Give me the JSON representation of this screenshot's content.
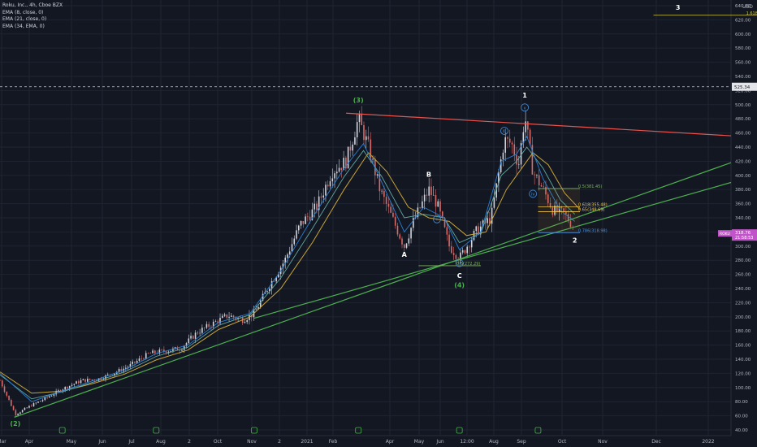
{
  "header": {
    "symbol_line": "Roku, Inc., 4h, Cboe BZX",
    "indicators": [
      "EMA (8, close, 0)",
      "EMA (21, close, 0)",
      "EMA (34, EMA, 0)"
    ]
  },
  "currency": "USD",
  "colors": {
    "background": "#131722",
    "grid": "#1f2433",
    "candle_up": "#d1d4dc",
    "candle_down": "#d86a6a",
    "ema8": "#2a7fd4",
    "ema21": "#5fa8a0",
    "ema34": "#c8a437",
    "resistance": "#e8534d",
    "support": "#4caf50",
    "price_badge": "#c254c9",
    "fib_05": "#7fb25f",
    "fib_0618": "#f5c842",
    "fib_0786": "#4a90d9"
  },
  "chart_data": {
    "type": "candlestick",
    "y_axis": {
      "ticks": [
        40,
        60,
        80,
        100,
        120,
        140,
        160,
        180,
        200,
        220,
        240,
        260,
        280,
        300,
        320,
        340,
        360,
        380,
        400,
        420,
        440,
        460,
        480,
        500,
        520,
        540,
        560,
        580,
        600,
        620,
        640
      ],
      "range": [
        32,
        648
      ]
    },
    "x_axis": {
      "labels": [
        "Mar",
        "Apr",
        "May",
        "Jun",
        "Jul",
        "Aug",
        "2",
        "Oct",
        "Nov",
        "2",
        "2021",
        "Feb",
        "Apr",
        "May",
        "Jun",
        "12:00",
        "Aug",
        "Sep",
        "Oct",
        "Nov",
        "Dec",
        "2022"
      ],
      "range": [
        "2020-03-01",
        "2022-02-15"
      ]
    },
    "price_path": [
      [
        "2020-03-01",
        110
      ],
      [
        "2020-03-16",
        62
      ],
      [
        "2020-04-01",
        75
      ],
      [
        "2020-04-15",
        85
      ],
      [
        "2020-05-01",
        98
      ],
      [
        "2020-05-20",
        110
      ],
      [
        "2020-06-05",
        112
      ],
      [
        "2020-06-20",
        120
      ],
      [
        "2020-07-05",
        130
      ],
      [
        "2020-07-25",
        148
      ],
      [
        "2020-08-10",
        152
      ],
      [
        "2020-08-25",
        155
      ],
      [
        "2020-09-10",
        178
      ],
      [
        "2020-09-25",
        190
      ],
      [
        "2020-10-10",
        202
      ],
      [
        "2020-10-25",
        196
      ],
      [
        "2020-11-05",
        205
      ],
      [
        "2020-11-20",
        245
      ],
      [
        "2020-12-05",
        280
      ],
      [
        "2020-12-20",
        330
      ],
      [
        "2021-01-05",
        355
      ],
      [
        "2021-01-20",
        405
      ],
      [
        "2021-02-03",
        420
      ],
      [
        "2021-02-15",
        480
      ],
      [
        "2021-02-25",
        440
      ],
      [
        "2021-03-08",
        380
      ],
      [
        "2021-03-20",
        340
      ],
      [
        "2021-04-01",
        300
      ],
      [
        "2021-04-10",
        335
      ],
      [
        "2021-04-25",
        380
      ],
      [
        "2021-05-03",
        360
      ],
      [
        "2021-05-15",
        300
      ],
      [
        "2021-05-25",
        283
      ],
      [
        "2021-06-10",
        320
      ],
      [
        "2021-06-25",
        340
      ],
      [
        "2021-07-08",
        450
      ],
      [
        "2021-07-15",
        445
      ],
      [
        "2021-07-22",
        415
      ],
      [
        "2021-07-28",
        485
      ],
      [
        "2021-08-05",
        405
      ],
      [
        "2021-08-15",
        380
      ],
      [
        "2021-08-25",
        350
      ],
      [
        "2021-09-05",
        345
      ],
      [
        "2021-09-15",
        325
      ]
    ],
    "ema_fast_path": [
      [
        "2020-03-01",
        120
      ],
      [
        "2020-04-01",
        80
      ],
      [
        "2020-05-01",
        95
      ],
      [
        "2020-06-01",
        110
      ],
      [
        "2020-07-01",
        125
      ],
      [
        "2020-08-01",
        148
      ],
      [
        "2020-09-01",
        160
      ],
      [
        "2020-10-01",
        192
      ],
      [
        "2020-11-01",
        205
      ],
      [
        "2020-12-01",
        265
      ],
      [
        "2021-01-01",
        340
      ],
      [
        "2021-02-01",
        410
      ],
      [
        "2021-02-20",
        445
      ],
      [
        "2021-03-10",
        390
      ],
      [
        "2021-04-01",
        320
      ],
      [
        "2021-04-20",
        355
      ],
      [
        "2021-05-10",
        340
      ],
      [
        "2021-05-25",
        295
      ],
      [
        "2021-06-15",
        320
      ],
      [
        "2021-07-05",
        420
      ],
      [
        "2021-07-20",
        430
      ],
      [
        "2021-07-30",
        455
      ],
      [
        "2021-08-15",
        395
      ],
      [
        "2021-09-01",
        350
      ],
      [
        "2021-09-15",
        335
      ]
    ],
    "ema_mid_path": [
      [
        "2020-03-01",
        118
      ],
      [
        "2020-04-01",
        84
      ],
      [
        "2020-05-01",
        94
      ],
      [
        "2020-06-01",
        108
      ],
      [
        "2020-07-01",
        122
      ],
      [
        "2020-08-01",
        144
      ],
      [
        "2020-09-01",
        157
      ],
      [
        "2020-10-01",
        188
      ],
      [
        "2020-11-01",
        203
      ],
      [
        "2020-12-01",
        255
      ],
      [
        "2021-01-01",
        325
      ],
      [
        "2021-02-01",
        398
      ],
      [
        "2021-02-20",
        435
      ],
      [
        "2021-03-10",
        398
      ],
      [
        "2021-04-01",
        340
      ],
      [
        "2021-04-20",
        345
      ],
      [
        "2021-05-10",
        340
      ],
      [
        "2021-05-25",
        305
      ],
      [
        "2021-06-15",
        318
      ],
      [
        "2021-07-05",
        400
      ],
      [
        "2021-07-20",
        420
      ],
      [
        "2021-07-30",
        440
      ],
      [
        "2021-08-15",
        410
      ],
      [
        "2021-09-01",
        365
      ],
      [
        "2021-09-15",
        345
      ]
    ],
    "ema_slow_path": [
      [
        "2020-03-01",
        122
      ],
      [
        "2020-04-01",
        92
      ],
      [
        "2020-05-01",
        95
      ],
      [
        "2020-06-01",
        106
      ],
      [
        "2020-07-01",
        119
      ],
      [
        "2020-08-01",
        139
      ],
      [
        "2020-09-01",
        153
      ],
      [
        "2020-10-01",
        182
      ],
      [
        "2020-11-01",
        200
      ],
      [
        "2020-12-01",
        240
      ],
      [
        "2021-01-01",
        305
      ],
      [
        "2021-02-01",
        380
      ],
      [
        "2021-02-25",
        432
      ],
      [
        "2021-03-15",
        405
      ],
      [
        "2021-04-05",
        355
      ],
      [
        "2021-04-25",
        340
      ],
      [
        "2021-05-15",
        335
      ],
      [
        "2021-06-01",
        315
      ],
      [
        "2021-06-20",
        320
      ],
      [
        "2021-07-10",
        380
      ],
      [
        "2021-07-25",
        410
      ],
      [
        "2021-08-05",
        432
      ],
      [
        "2021-08-20",
        415
      ],
      [
        "2021-09-05",
        375
      ],
      [
        "2021-09-20",
        352
      ]
    ],
    "trendlines": [
      {
        "name": "resistance",
        "from": [
          "2021-02-03",
          488
        ],
        "to": [
          "2022-02-15",
          456
        ]
      },
      {
        "name": "support-upper",
        "from": [
          "2020-03-15",
          58
        ],
        "to": [
          "2022-02-15",
          418
        ]
      },
      {
        "name": "support-lower",
        "from": [
          "2020-11-05",
          198
        ],
        "to": [
          "2022-02-15",
          390
        ]
      }
    ],
    "fib_levels": [
      {
        "label": "0.5(381.45)",
        "price": 381.45,
        "from": "2021-08-10",
        "to": "2021-09-20",
        "color": "#7fb25f"
      },
      {
        "label": "0.618(355.48)",
        "price": 355.48,
        "from": "2021-08-10",
        "to": "2021-09-20",
        "color": "#f5c842"
      },
      {
        "label": "0.65(348.69)",
        "price": 348.69,
        "from": "2021-08-10",
        "to": "2021-09-20",
        "color": "#f5c842"
      },
      {
        "label": "0.786(318.98)",
        "price": 318.98,
        "from": "2021-08-10",
        "to": "2021-09-20",
        "color": "#4a90d9"
      },
      {
        "label": "0.5(272.29)",
        "price": 272.29,
        "from": "2021-04-15",
        "to": "2021-06-15",
        "color": "#7fb25f"
      },
      {
        "label": "1.618(626.45)",
        "price": 626.45,
        "from": "2021-12-01",
        "to": "2022-04-01",
        "color": "#d4c94a"
      }
    ],
    "wave_labels": [
      {
        "text": "(2)",
        "date": "2020-03-16",
        "price": 46,
        "color": "#4caf50"
      },
      {
        "text": "(3)",
        "date": "2021-02-15",
        "price": 503,
        "color": "#4caf50"
      },
      {
        "text": "A",
        "date": "2021-04-01",
        "price": 285,
        "color": "#ffffff"
      },
      {
        "text": "B",
        "date": "2021-04-25",
        "price": 398,
        "color": "#ffffff"
      },
      {
        "text": "C",
        "date": "2021-05-25",
        "price": 255,
        "color": "#ffffff"
      },
      {
        "text": "(4)",
        "date": "2021-05-25",
        "price": 242,
        "color": "#4caf50"
      },
      {
        "text": "1",
        "date": "2021-07-28",
        "price": 510,
        "color": "#ffffff"
      },
      {
        "text": "2",
        "date": "2021-09-15",
        "price": 305,
        "color": "#ffffff"
      },
      {
        "text": "3",
        "date": "2021-12-25",
        "price": 634,
        "color": "#ffffff"
      }
    ],
    "wave_circles": [
      {
        "text": "iii",
        "date": "2021-07-08",
        "price": 463
      },
      {
        "text": "iv",
        "date": "2021-08-05",
        "price": 374
      },
      {
        "text": "v",
        "date": "2021-07-28",
        "price": 496
      },
      {
        "text": "ii",
        "date": "2021-05-25",
        "price": 276
      },
      {
        "text": "i",
        "date": "2021-05-03",
        "price": 338
      }
    ],
    "bottom_markers": [
      "2020-05-01",
      "2020-08-01",
      "2020-11-05",
      "2021-02-15",
      "2021-05-25",
      "2021-08-10"
    ],
    "price_badge": {
      "price": 318,
      "symbol": "ROKU",
      "value": "318.76",
      "countdown": "21:58:53"
    },
    "dashed_line": {
      "price": 525.34,
      "label": "525.34"
    }
  }
}
